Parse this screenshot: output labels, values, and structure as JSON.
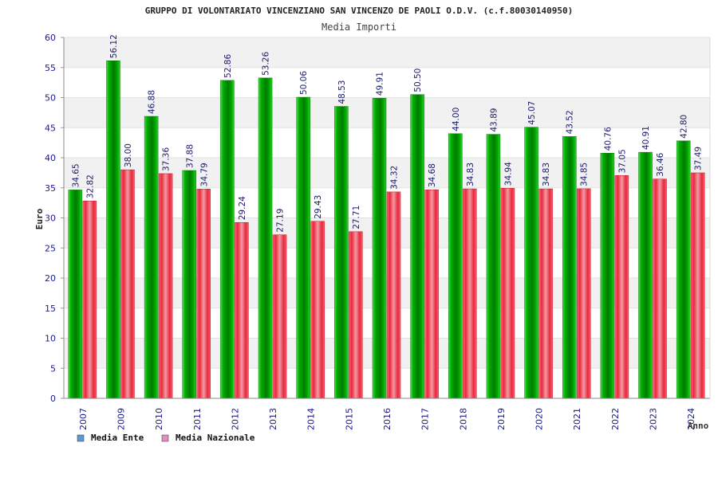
{
  "chart_data": {
    "type": "bar",
    "title": "GRUPPO DI VOLONTARIATO VINCENZIANO SAN VINCENZO DE PAOLI O.D.V. (c.f.80030140950)",
    "subtitle": "Media Importi",
    "xlabel": "Anno",
    "ylabel": "Euro",
    "ylim": [
      0,
      60
    ],
    "yticks": [
      0,
      5,
      10,
      15,
      20,
      25,
      30,
      35,
      40,
      45,
      50,
      55,
      60
    ],
    "categories": [
      "2007",
      "2009",
      "2010",
      "2011",
      "2012",
      "2013",
      "2014",
      "2015",
      "2016",
      "2017",
      "2018",
      "2019",
      "2020",
      "2021",
      "2022",
      "2023",
      "2024"
    ],
    "series": [
      {
        "name": "Media Ente",
        "color": "#00aa00",
        "values": [
          34.65,
          56.12,
          46.88,
          37.88,
          52.86,
          53.26,
          50.06,
          48.53,
          49.91,
          50.5,
          44.0,
          43.89,
          45.07,
          43.52,
          40.76,
          40.91,
          42.8
        ],
        "labels": [
          "34.65",
          "56.12",
          "46.88",
          "37.88",
          "52.86",
          "53.26",
          "50.06",
          "48.53",
          "49.91",
          "50.50",
          "44.00",
          "43.89",
          "45.07",
          "43.52",
          "40.76",
          "40.91",
          "42.80"
        ]
      },
      {
        "name": "Media Nazionale",
        "color": "#e8283c",
        "values": [
          32.82,
          38.0,
          37.36,
          34.79,
          29.24,
          27.19,
          29.43,
          27.71,
          34.32,
          34.68,
          34.83,
          34.94,
          34.83,
          34.85,
          37.05,
          36.46,
          37.49
        ],
        "labels": [
          "32.82",
          "38.00",
          "37.36",
          "34.79",
          "29.24",
          "27.19",
          "29.43",
          "27.71",
          "34.32",
          "34.68",
          "34.83",
          "34.94",
          "34.83",
          "34.85",
          "37.05",
          "36.46",
          "37.49"
        ]
      }
    ],
    "legend": {
      "placement": "bottom-left",
      "items": [
        {
          "label": "Media Ente",
          "color": "#5b9bd5"
        },
        {
          "label": "Media Nazionale",
          "color": "#e08fc0"
        }
      ]
    },
    "grid": true
  }
}
